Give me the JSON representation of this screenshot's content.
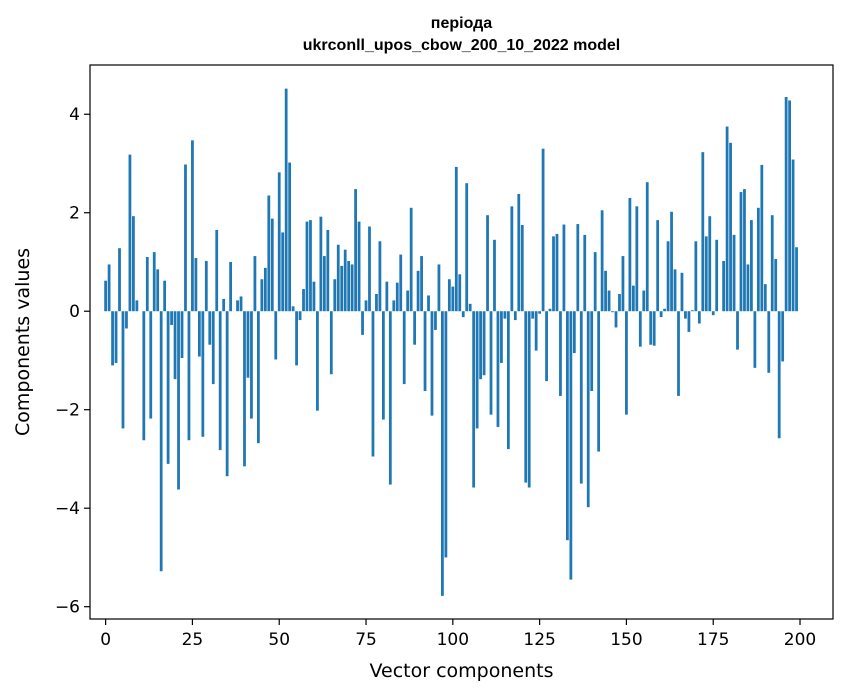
{
  "chart_data": {
    "type": "bar",
    "title": "періода\nukrconll_upos_cbow_200_10_2022 model",
    "xlabel": "Vector components",
    "ylabel": "Components values",
    "xlim": [
      -4.5,
      209.5
    ],
    "ylim": [
      -6.25,
      5.0
    ],
    "xticks": [
      0,
      25,
      50,
      75,
      100,
      125,
      150,
      175,
      200
    ],
    "yticks": [
      -6,
      -4,
      -2,
      0,
      2,
      4
    ],
    "grid": false,
    "bar_color": "#1f77b4",
    "x": [
      0,
      1,
      2,
      3,
      4,
      5,
      6,
      7,
      8,
      9,
      10,
      11,
      12,
      13,
      14,
      15,
      16,
      17,
      18,
      19,
      20,
      21,
      22,
      23,
      24,
      25,
      26,
      27,
      28,
      29,
      30,
      31,
      32,
      33,
      34,
      35,
      36,
      37,
      38,
      39,
      40,
      41,
      42,
      43,
      44,
      45,
      46,
      47,
      48,
      49,
      50,
      51,
      52,
      53,
      54,
      55,
      56,
      57,
      58,
      59,
      60,
      61,
      62,
      63,
      64,
      65,
      66,
      67,
      68,
      69,
      70,
      71,
      72,
      73,
      74,
      75,
      76,
      77,
      78,
      79,
      80,
      81,
      82,
      83,
      84,
      85,
      86,
      87,
      88,
      89,
      90,
      91,
      92,
      93,
      94,
      95,
      96,
      97,
      98,
      99,
      100,
      101,
      102,
      103,
      104,
      105,
      106,
      107,
      108,
      109,
      110,
      111,
      112,
      113,
      114,
      115,
      116,
      117,
      118,
      119,
      120,
      121,
      122,
      123,
      124,
      125,
      126,
      127,
      128,
      129,
      130,
      131,
      132,
      133,
      134,
      135,
      136,
      137,
      138,
      139,
      140,
      141,
      142,
      143,
      144,
      145,
      146,
      147,
      148,
      149,
      150,
      151,
      152,
      153,
      154,
      155,
      156,
      157,
      158,
      159,
      160,
      161,
      162,
      163,
      164,
      165,
      166,
      167,
      168,
      169,
      170,
      171,
      172,
      173,
      174,
      175,
      176,
      177,
      178,
      179,
      180,
      181,
      182,
      183,
      184,
      185,
      186,
      187,
      188,
      189,
      190,
      191,
      192,
      193,
      194,
      195,
      196,
      197,
      198,
      199
    ],
    "values": [
      0.62,
      0.95,
      -1.1,
      -1.05,
      1.28,
      -2.38,
      -0.35,
      3.18,
      1.93,
      0.22,
      0.0,
      -2.62,
      1.1,
      -2.18,
      1.2,
      0.85,
      -5.28,
      0.62,
      -3.1,
      -0.28,
      -1.38,
      -3.62,
      -0.95,
      2.98,
      -2.62,
      3.47,
      1.08,
      -0.92,
      -2.55,
      1.02,
      -0.68,
      -1.48,
      1.65,
      -2.82,
      0.25,
      -3.35,
      1.0,
      0.0,
      0.22,
      0.3,
      -3.15,
      -1.35,
      -2.18,
      1.12,
      -2.68,
      0.65,
      0.88,
      2.35,
      1.88,
      -0.98,
      2.82,
      1.6,
      4.52,
      3.02,
      0.1,
      -1.1,
      -0.18,
      0.45,
      1.82,
      1.85,
      0.6,
      -2.02,
      1.92,
      1.12,
      1.65,
      -1.28,
      0.65,
      1.35,
      0.92,
      1.25,
      1.02,
      0.95,
      2.48,
      1.82,
      -0.48,
      0.22,
      1.72,
      -2.95,
      0.35,
      1.42,
      -2.2,
      0.6,
      -3.52,
      0.22,
      0.58,
      1.15,
      -1.48,
      0.42,
      2.1,
      -0.68,
      0.82,
      1.12,
      -1.62,
      0.32,
      -2.12,
      -0.38,
      0.95,
      -5.78,
      -5.0,
      0.65,
      0.5,
      2.93,
      0.75,
      -0.12,
      2.6,
      0.15,
      -3.58,
      -2.38,
      -1.38,
      -1.3,
      1.95,
      -2.1,
      1.45,
      -2.35,
      -1.05,
      -0.15,
      -2.8,
      2.13,
      -0.18,
      2.38,
      1.75,
      -3.48,
      -3.58,
      -0.15,
      -0.8,
      -0.05,
      3.3,
      -1.42,
      0.05,
      1.52,
      1.57,
      -1.72,
      1.76,
      -4.65,
      -5.45,
      -0.85,
      1.77,
      -3.5,
      1.55,
      -3.98,
      -1.62,
      1.2,
      -2.85,
      2.05,
      0.82,
      0.42,
      -0.02,
      -0.33,
      0.35,
      1.12,
      -2.1,
      2.3,
      0.52,
      2.13,
      -0.72,
      0.42,
      2.62,
      -0.68,
      -0.7,
      1.85,
      -0.12,
      0.05,
      1.42,
      2.02,
      0.85,
      -1.72,
      0.78,
      -0.15,
      -0.42,
      0.02,
      1.42,
      -0.25,
      3.23,
      1.52,
      1.93,
      -0.08,
      1.45,
      0.0,
      1.02,
      3.75,
      3.42,
      1.55,
      -0.78,
      2.42,
      2.48,
      0.95,
      1.85,
      -1.15,
      2.1,
      2.97,
      0.55,
      -1.25,
      1.95,
      1.06,
      -2.58,
      -1.02,
      4.35,
      4.28,
      3.08,
      1.3
    ]
  }
}
